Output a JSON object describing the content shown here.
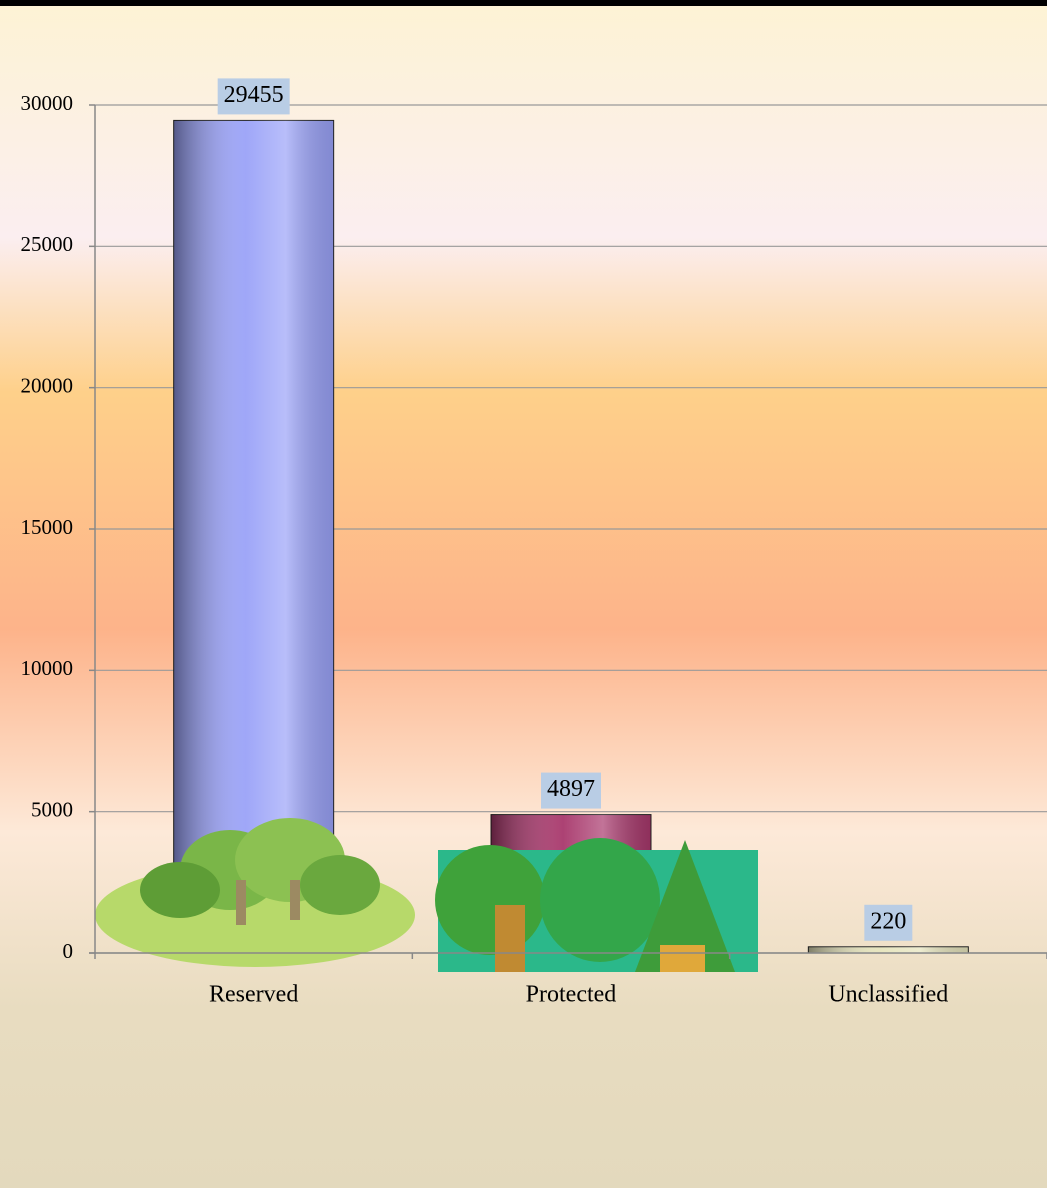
{
  "chart_data": {
    "type": "bar",
    "categories": [
      "Reserved",
      "Protected",
      "Unclassified"
    ],
    "values": [
      29455,
      4897,
      220
    ],
    "colors": [
      "#9aa2f8",
      "#a8386c",
      "#e6e4bc"
    ],
    "ylim": [
      0,
      30000
    ],
    "yticks": [
      0,
      5000,
      10000,
      15000,
      20000,
      25000,
      30000
    ],
    "grid": true
  }
}
